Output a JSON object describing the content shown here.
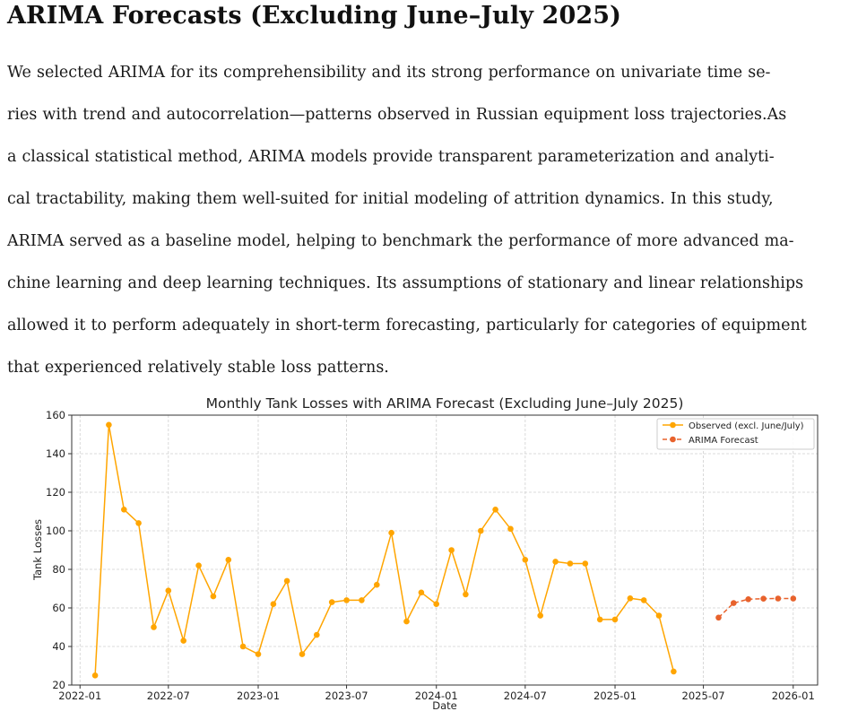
{
  "heading": "ARIMA Forecasts (Excluding June–July 2025)",
  "paragraph_lines": [
    "We selected ARIMA for its comprehensibility and its strong performance on univariate time se-",
    "ries with trend and autocorrelation—patterns observed in Russian equipment loss trajectories.As",
    "a classical statistical method, ARIMA models provide transparent parameterization and analyti-",
    "cal tractability, making them well-suited for initial modeling of attrition dynamics. In this study,",
    "ARIMA served as a baseline model, helping to benchmark the performance of more advanced ma-",
    "chine learning and deep learning techniques. Its assumptions of stationary and linear relationships",
    "allowed it to perform adequately in short-term forecasting, particularly for categories of equipment",
    "that experienced relatively stable loss patterns."
  ],
  "chart_data": {
    "type": "line",
    "title": "Monthly Tank Losses with ARIMA Forecast (Excluding June–July 2025)",
    "xlabel": "Date",
    "ylabel": "Tank Losses",
    "xlim": [
      "2021-12-15",
      "2026-02-20"
    ],
    "ylim": [
      20,
      160
    ],
    "x_ticks": [
      "2022-01",
      "2022-07",
      "2023-01",
      "2023-07",
      "2024-01",
      "2024-07",
      "2025-01",
      "2025-07",
      "2026-01"
    ],
    "y_ticks": [
      20,
      40,
      60,
      80,
      100,
      120,
      140,
      160
    ],
    "grid": true,
    "legend_position": "top-right",
    "series": [
      {
        "name": "Observed (excl. June/July)",
        "color": "#FFA500",
        "style": "solid",
        "x": [
          "2022-02",
          "2022-03",
          "2022-04",
          "2022-05",
          "2022-06",
          "2022-07",
          "2022-08",
          "2022-09",
          "2022-10",
          "2022-11",
          "2022-12",
          "2023-01",
          "2023-02",
          "2023-03",
          "2023-04",
          "2023-05",
          "2023-06",
          "2023-07",
          "2023-08",
          "2023-09",
          "2023-10",
          "2023-11",
          "2023-12",
          "2024-01",
          "2024-02",
          "2024-03",
          "2024-04",
          "2024-05",
          "2024-06",
          "2024-07",
          "2024-08",
          "2024-09",
          "2024-10",
          "2024-11",
          "2024-12",
          "2025-01",
          "2025-02",
          "2025-03",
          "2025-04",
          "2025-05"
        ],
        "values": [
          25,
          155,
          111,
          104,
          50,
          69,
          43,
          82,
          66,
          85,
          40,
          36,
          62,
          74,
          36,
          46,
          63,
          64,
          64,
          72,
          99,
          53,
          68,
          62,
          90,
          67,
          100,
          111,
          101,
          85,
          56,
          84,
          83,
          83,
          54,
          54,
          65,
          64,
          56,
          27
        ]
      },
      {
        "name": "ARIMA Forecast",
        "color": "#E8622C",
        "style": "dashed",
        "x": [
          "2025-08",
          "2025-09",
          "2025-10",
          "2025-11",
          "2025-12",
          "2026-01"
        ],
        "values": [
          55,
          62.5,
          64.5,
          64.8,
          64.9,
          64.9
        ]
      }
    ]
  }
}
